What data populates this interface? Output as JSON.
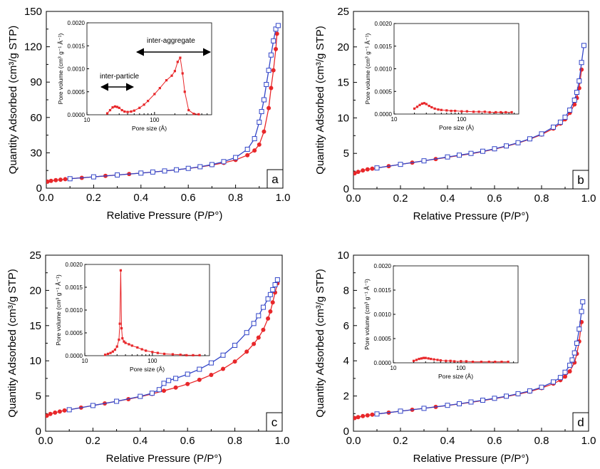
{
  "colors": {
    "adsorption": "#e8272a",
    "desorption": "#3346c8",
    "desorption_fill": "#ffffff",
    "axis": "#000000"
  },
  "chart_data": [
    {
      "type": "line",
      "panel_label": "a",
      "xlabel": "Relative Pressure (P/P°)",
      "ylabel": "Quantity Adsorbed (cm³/g STP)",
      "xlim": [
        0,
        1.0
      ],
      "ylim": [
        0,
        150
      ],
      "xticks": [
        0,
        0.2,
        0.4,
        0.6,
        0.8,
        1.0
      ],
      "xtick_labels": [
        "0.0",
        "0.2",
        "0.4",
        "0.6",
        "0.8",
        "1.0"
      ],
      "yticks": [
        0,
        30,
        60,
        90,
        120,
        150
      ],
      "ytick_labels": [
        "0",
        "30",
        "60",
        "90",
        "120",
        "150"
      ],
      "series": [
        {
          "role": "adsorption",
          "marker": "filled-circle",
          "x": [
            0.005,
            0.02,
            0.04,
            0.06,
            0.08,
            0.1,
            0.15,
            0.2,
            0.25,
            0.3,
            0.35,
            0.4,
            0.45,
            0.5,
            0.55,
            0.6,
            0.65,
            0.7,
            0.75,
            0.8,
            0.85,
            0.88,
            0.9,
            0.92,
            0.94,
            0.95,
            0.96,
            0.97,
            0.975
          ],
          "y": [
            5.5,
            6.2,
            6.8,
            7.2,
            7.6,
            8,
            8.8,
            9.6,
            10.4,
            11.2,
            12,
            12.8,
            13.7,
            14.6,
            15.6,
            16.7,
            18,
            19.6,
            21.5,
            24,
            28,
            32,
            37,
            48,
            68,
            85,
            100,
            118,
            131
          ]
        },
        {
          "role": "desorption",
          "marker": "open-square",
          "x": [
            0.1,
            0.2,
            0.3,
            0.4,
            0.45,
            0.5,
            0.55,
            0.6,
            0.65,
            0.7,
            0.75,
            0.8,
            0.85,
            0.88,
            0.9,
            0.91,
            0.92,
            0.93,
            0.94,
            0.95,
            0.96,
            0.97,
            0.98
          ],
          "y": [
            8,
            9.6,
            11.2,
            12.8,
            13.7,
            14.6,
            15.6,
            16.8,
            18.2,
            20,
            22.5,
            26,
            33,
            42,
            56,
            65,
            75,
            88,
            100,
            113,
            125,
            135,
            138
          ]
        }
      ],
      "inset": {
        "type": "line",
        "xlabel": "Pore size (Å)",
        "ylabel": "Pore volume (cm³ g⁻¹ Å⁻¹)",
        "xscale": "log",
        "xlim": [
          10,
          700
        ],
        "ylim": [
          0,
          0.002
        ],
        "xtick_labels": [
          "10",
          "100"
        ],
        "ytick_labels": [
          "0.0000",
          "0.0005",
          "0.0010",
          "0.0015",
          "0.0020"
        ],
        "x": [
          20,
          22,
          24,
          26,
          28,
          30,
          33,
          36,
          40,
          45,
          50,
          60,
          70,
          80,
          100,
          120,
          150,
          180,
          200,
          220,
          240,
          260,
          280,
          320,
          380,
          450
        ],
        "y": [
          3e-05,
          0.0001,
          0.00016,
          0.00018,
          0.00017,
          0.00015,
          0.0001,
          7e-05,
          6e-05,
          7e-05,
          9e-05,
          0.00015,
          0.00022,
          0.0003,
          0.00045,
          0.00058,
          0.00075,
          0.00085,
          0.00095,
          0.00115,
          0.00124,
          0.0009,
          0.0005,
          0.0001,
          2e-05,
          1e-05
        ],
        "annotations": [
          "inter-particle",
          "inter-aggregate"
        ]
      }
    },
    {
      "type": "line",
      "panel_label": "b",
      "xlabel": "Relative Pressure (P/P°)",
      "ylabel": "Quantity Adsorbed (cm³/g STP)",
      "xlim": [
        0,
        1.0
      ],
      "ylim": [
        0,
        25
      ],
      "xticks": [
        0,
        0.2,
        0.4,
        0.6,
        0.8,
        1.0
      ],
      "xtick_labels": [
        "0.0",
        "0.2",
        "0.4",
        "0.6",
        "0.8",
        "1.0"
      ],
      "yticks": [
        0,
        5,
        10,
        15,
        20,
        25
      ],
      "ytick_labels": [
        "0",
        "5",
        "10",
        "15",
        "20",
        "25"
      ],
      "series": [
        {
          "role": "adsorption",
          "marker": "filled-circle",
          "x": [
            0.005,
            0.02,
            0.04,
            0.06,
            0.08,
            0.1,
            0.15,
            0.2,
            0.25,
            0.3,
            0.35,
            0.4,
            0.45,
            0.5,
            0.55,
            0.6,
            0.65,
            0.7,
            0.75,
            0.8,
            0.85,
            0.88,
            0.9,
            0.92,
            0.94,
            0.95,
            0.96,
            0.97
          ],
          "y": [
            2.2,
            2.4,
            2.6,
            2.75,
            2.85,
            2.95,
            3.2,
            3.45,
            3.7,
            3.95,
            4.2,
            4.45,
            4.7,
            4.95,
            5.25,
            5.6,
            6,
            6.45,
            7,
            7.65,
            8.5,
            9.2,
            9.8,
            10.7,
            11.9,
            12.8,
            14.2,
            16.8
          ]
        },
        {
          "role": "desorption",
          "marker": "open-square",
          "x": [
            0.1,
            0.2,
            0.3,
            0.4,
            0.45,
            0.5,
            0.55,
            0.6,
            0.65,
            0.7,
            0.75,
            0.8,
            0.85,
            0.88,
            0.9,
            0.92,
            0.94,
            0.95,
            0.96,
            0.97,
            0.98
          ],
          "y": [
            2.95,
            3.45,
            3.95,
            4.5,
            4.75,
            5,
            5.3,
            5.65,
            6.05,
            6.5,
            7.05,
            7.75,
            8.7,
            9.4,
            10.1,
            11.1,
            12.5,
            13.6,
            15.2,
            17.8,
            20.2
          ]
        }
      ],
      "inset": {
        "type": "line",
        "xlabel": "Pore size (Å)",
        "ylabel": "Pore volume (cm³ g⁻¹ Å⁻¹)",
        "xscale": "log",
        "xlim": [
          10,
          700
        ],
        "ylim": [
          0,
          0.002
        ],
        "xtick_labels": [
          "10",
          "100"
        ],
        "ytick_labels": [
          "0.0000",
          "0.0005",
          "0.0010",
          "0.0015",
          "0.0020"
        ],
        "x": [
          20,
          22,
          24,
          26,
          28,
          30,
          33,
          36,
          40,
          45,
          50,
          60,
          70,
          80,
          100,
          120,
          150,
          180,
          220,
          260,
          320,
          380,
          450,
          550
        ],
        "y": [
          0.00012,
          0.00016,
          0.0002,
          0.00023,
          0.00024,
          0.00022,
          0.00018,
          0.00015,
          0.00012,
          0.0001,
          9e-05,
          8e-05,
          7e-05,
          7e-05,
          6e-05,
          6e-05,
          5e-05,
          5e-05,
          5e-05,
          4e-05,
          4e-05,
          4e-05,
          4e-05,
          4e-05
        ],
        "annotations": []
      }
    },
    {
      "type": "line",
      "panel_label": "c",
      "xlabel": "Relative Pressure (P/P°)",
      "ylabel": "Quantity Adsorbed (cm³/g STP)",
      "xlim": [
        0,
        1.0
      ],
      "ylim": [
        0,
        25
      ],
      "xticks": [
        0,
        0.2,
        0.4,
        0.6,
        0.8,
        1.0
      ],
      "xtick_labels": [
        "0.0",
        "0.2",
        "0.4",
        "0.6",
        "0.8",
        "1.0"
      ],
      "yticks": [
        0,
        5,
        10,
        15,
        20,
        25
      ],
      "ytick_labels": [
        "0",
        "5",
        "10",
        "15",
        "20",
        "25"
      ],
      "series": [
        {
          "role": "adsorption",
          "marker": "filled-circle",
          "x": [
            0.005,
            0.02,
            0.04,
            0.06,
            0.08,
            0.1,
            0.15,
            0.2,
            0.25,
            0.3,
            0.35,
            0.4,
            0.45,
            0.5,
            0.55,
            0.6,
            0.65,
            0.7,
            0.75,
            0.8,
            0.85,
            0.88,
            0.9,
            0.92,
            0.94,
            0.95,
            0.96,
            0.97,
            0.98
          ],
          "y": [
            2.2,
            2.45,
            2.65,
            2.8,
            2.95,
            3.05,
            3.35,
            3.65,
            3.95,
            4.25,
            4.55,
            4.9,
            5.3,
            5.75,
            6.2,
            6.7,
            7.3,
            8,
            8.85,
            9.9,
            11.3,
            12.4,
            13.3,
            14.4,
            16,
            17,
            18.3,
            19.7,
            21
          ]
        },
        {
          "role": "desorption",
          "marker": "open-square",
          "x": [
            0.1,
            0.2,
            0.3,
            0.4,
            0.45,
            0.48,
            0.5,
            0.52,
            0.55,
            0.6,
            0.65,
            0.7,
            0.75,
            0.8,
            0.85,
            0.88,
            0.9,
            0.92,
            0.94,
            0.95,
            0.96,
            0.97,
            0.98
          ],
          "y": [
            3.05,
            3.65,
            4.25,
            4.95,
            5.4,
            5.9,
            6.8,
            7.2,
            7.5,
            8.1,
            8.8,
            9.7,
            10.8,
            12.2,
            14,
            15.3,
            16.4,
            17.6,
            18.8,
            19.4,
            20.1,
            20.8,
            21.5
          ]
        }
      ],
      "inset": {
        "type": "line",
        "xlabel": "Pore size (Å)",
        "ylabel": "Pore volume (cm³ g⁻¹ Å⁻¹)",
        "xscale": "log",
        "xlim": [
          10,
          700
        ],
        "ylim": [
          0,
          0.002
        ],
        "xtick_labels": [
          "10",
          "100"
        ],
        "ytick_labels": [
          "0.0000",
          "0.0005",
          "0.0010",
          "0.0015",
          "0.0020"
        ],
        "x": [
          20,
          22,
          24,
          26,
          28,
          30,
          32,
          33,
          34,
          35,
          36,
          38,
          40,
          45,
          50,
          60,
          70,
          80,
          100,
          120,
          150,
          200,
          260,
          320,
          400,
          500
        ],
        "y": [
          2e-05,
          4e-05,
          6e-05,
          9e-05,
          0.00013,
          0.0002,
          0.00035,
          0.0007,
          0.00187,
          0.0006,
          0.00038,
          0.00031,
          0.00028,
          0.00025,
          0.00022,
          0.00018,
          0.00014,
          0.00011,
          8e-05,
          6e-05,
          4e-05,
          3e-05,
          2e-05,
          1e-05,
          1e-05,
          1e-05
        ],
        "annotations": []
      }
    },
    {
      "type": "line",
      "panel_label": "d",
      "xlabel": "Relative Pressure (P/P°)",
      "ylabel": "Quantity Adsorbed (cm³/g STP)",
      "xlim": [
        0,
        1.0
      ],
      "ylim": [
        0,
        10
      ],
      "xticks": [
        0,
        0.2,
        0.4,
        0.6,
        0.8,
        1.0
      ],
      "xtick_labels": [
        "0.0",
        "0.2",
        "0.4",
        "0.6",
        "0.8",
        "1.0"
      ],
      "yticks": [
        0,
        2,
        4,
        6,
        8,
        10
      ],
      "ytick_labels": [
        "0",
        "2",
        "4",
        "6",
        "8",
        "10"
      ],
      "series": [
        {
          "role": "adsorption",
          "marker": "filled-circle",
          "x": [
            0.005,
            0.02,
            0.04,
            0.06,
            0.08,
            0.1,
            0.15,
            0.2,
            0.25,
            0.3,
            0.35,
            0.4,
            0.45,
            0.5,
            0.55,
            0.6,
            0.65,
            0.7,
            0.75,
            0.8,
            0.85,
            0.88,
            0.9,
            0.92,
            0.94,
            0.95,
            0.96,
            0.97
          ],
          "y": [
            0.75,
            0.8,
            0.86,
            0.9,
            0.94,
            0.98,
            1.06,
            1.14,
            1.22,
            1.3,
            1.38,
            1.46,
            1.55,
            1.64,
            1.74,
            1.85,
            1.97,
            2.1,
            2.25,
            2.45,
            2.7,
            2.9,
            3.1,
            3.4,
            3.9,
            4.4,
            5.1,
            6.2
          ]
        },
        {
          "role": "desorption",
          "marker": "open-square",
          "x": [
            0.1,
            0.2,
            0.3,
            0.4,
            0.45,
            0.5,
            0.55,
            0.6,
            0.65,
            0.7,
            0.75,
            0.8,
            0.85,
            0.88,
            0.9,
            0.92,
            0.93,
            0.94,
            0.95,
            0.96,
            0.97,
            0.975
          ],
          "y": [
            0.98,
            1.14,
            1.3,
            1.47,
            1.56,
            1.66,
            1.76,
            1.87,
            1.99,
            2.13,
            2.29,
            2.5,
            2.8,
            3.05,
            3.35,
            3.75,
            4.05,
            4.45,
            5,
            5.8,
            6.8,
            7.35
          ]
        }
      ],
      "inset": {
        "type": "line",
        "xlabel": "Pore size (Å)",
        "ylabel": "Pore volume (cm³ g⁻¹ Å⁻¹)",
        "xscale": "log",
        "xlim": [
          10,
          700
        ],
        "ylim": [
          0,
          0.002
        ],
        "xtick_labels": [
          "10",
          "100"
        ],
        "ytick_labels": [
          "0.0000",
          "0.0005",
          "0.0010",
          "0.0015",
          "0.0020"
        ],
        "x": [
          20,
          22,
          24,
          26,
          28,
          30,
          33,
          36,
          40,
          45,
          50,
          60,
          70,
          80,
          100,
          120,
          150,
          200,
          260,
          320,
          400,
          500
        ],
        "y": [
          4e-05,
          6e-05,
          8e-05,
          9e-05,
          0.0001,
          0.0001,
          9e-05,
          8e-05,
          7e-05,
          6e-05,
          5e-05,
          4e-05,
          4e-05,
          3e-05,
          3e-05,
          3e-05,
          2e-05,
          2e-05,
          2e-05,
          2e-05,
          2e-05,
          2e-05
        ],
        "annotations": []
      }
    }
  ]
}
